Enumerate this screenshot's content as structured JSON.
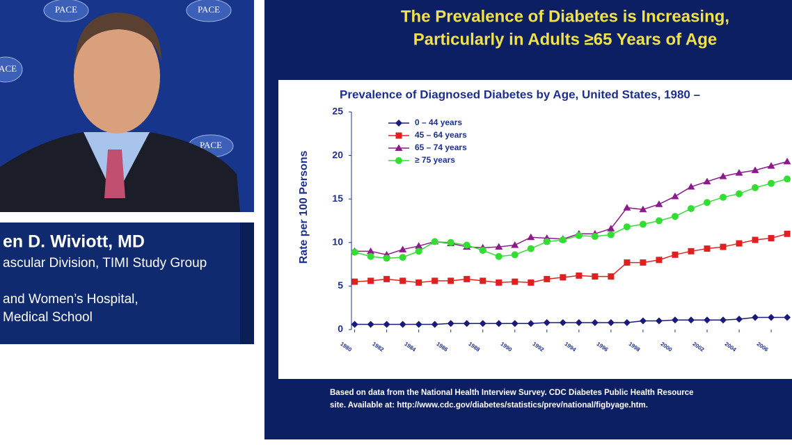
{
  "presenter": {
    "name": "en D. Wiviott, MD",
    "affiliation_lines": [
      "ascular Division, TIMI Study Group",
      "and Women’s Hospital,",
      "Medical School"
    ],
    "logo_text": "PACE"
  },
  "slide": {
    "title_lines": [
      "The Prevalence of Diabetes is Increasing,",
      "Particularly in Adults ≥65 Years of Age"
    ],
    "footnote_lines": [
      "Based on data from the National Health Interview Survey. CDC Diabetes Public Health Resource",
      "site. Available at: http://www.cdc.gov/diabetes/statistics/prev/national/figbyage.htm."
    ]
  },
  "chart_data": {
    "type": "line",
    "title": "Prevalence of Diagnosed Diabetes by Age, United States, 1980 –",
    "y_label": "Rate per 100 Persons",
    "x": [
      1980,
      1981,
      1982,
      1983,
      1984,
      1985,
      1986,
      1987,
      1988,
      1989,
      1990,
      1991,
      1992,
      1993,
      1994,
      1995,
      1996,
      1997,
      1998,
      1999,
      2000,
      2001,
      2002,
      2003,
      2004,
      2005,
      2006,
      2007
    ],
    "xlim": [
      1979.8,
      2007.3
    ],
    "xticks": [
      1980,
      1982,
      1984,
      1986,
      1988,
      1990,
      1992,
      1994,
      1996,
      1998,
      2000,
      2002,
      2004,
      2006
    ],
    "ylim": [
      0,
      25
    ],
    "yticks": [
      0,
      5,
      10,
      15,
      20,
      25
    ],
    "series": [
      {
        "name": "0 – 44 years",
        "color": "#1a1a7a",
        "marker": "diamond",
        "values": [
          0.6,
          0.6,
          0.6,
          0.6,
          0.6,
          0.6,
          0.7,
          0.7,
          0.7,
          0.7,
          0.7,
          0.7,
          0.8,
          0.8,
          0.8,
          0.8,
          0.8,
          0.8,
          1.0,
          1.0,
          1.1,
          1.1,
          1.1,
          1.1,
          1.2,
          1.4,
          1.4,
          1.4
        ]
      },
      {
        "name": "45 – 64 years",
        "color": "#e02020",
        "marker": "square",
        "values": [
          5.5,
          5.6,
          5.8,
          5.6,
          5.4,
          5.6,
          5.6,
          5.8,
          5.6,
          5.4,
          5.5,
          5.4,
          5.8,
          6.0,
          6.2,
          6.1,
          6.1,
          7.7,
          7.7,
          8.0,
          8.6,
          9.0,
          9.3,
          9.5,
          9.9,
          10.3,
          10.5,
          11.0
        ]
      },
      {
        "name": "65 – 74 years",
        "color": "#8b1a8b",
        "marker": "triangle",
        "values": [
          9.0,
          9.0,
          8.6,
          9.2,
          9.6,
          10.1,
          9.9,
          9.5,
          9.4,
          9.5,
          9.7,
          10.6,
          10.5,
          10.4,
          11.0,
          11.0,
          11.6,
          14.0,
          13.8,
          14.4,
          15.3,
          16.4,
          17.0,
          17.6,
          18.0,
          18.3,
          18.8,
          19.3
        ]
      },
      {
        "name": "≥ 75 years",
        "color": "#33dd33",
        "marker": "circle",
        "values": [
          8.9,
          8.4,
          8.2,
          8.3,
          9.0,
          10.1,
          10.0,
          9.7,
          9.1,
          8.4,
          8.6,
          9.3,
          10.1,
          10.3,
          10.8,
          10.7,
          10.9,
          11.8,
          12.1,
          12.5,
          13.0,
          13.9,
          14.6,
          15.2,
          15.6,
          16.3,
          16.8,
          17.3
        ]
      }
    ]
  }
}
